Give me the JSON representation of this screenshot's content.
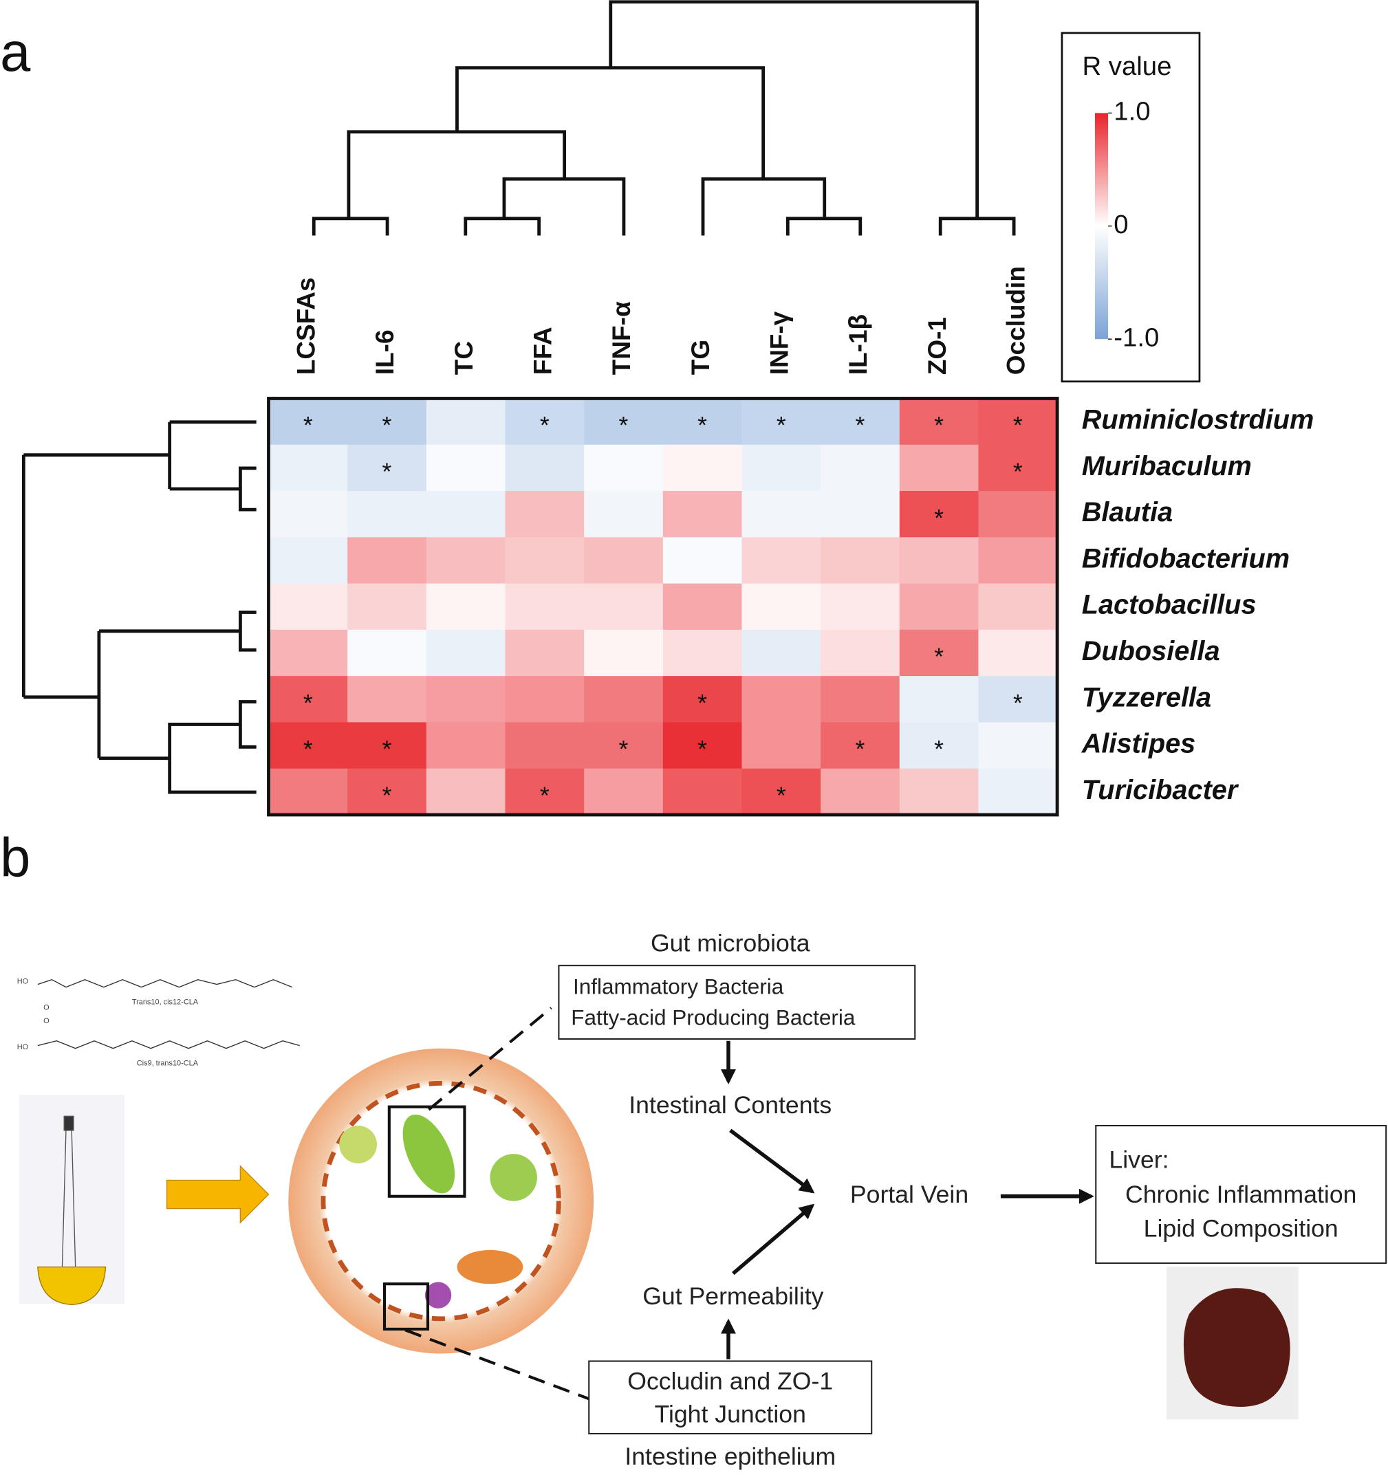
{
  "panel_labels": [
    "a",
    "b"
  ],
  "chart_data": {
    "type": "heatmap",
    "columns": [
      "LCSFAs",
      "IL-6",
      "TC",
      "FFA",
      "TNF-α",
      "TG",
      "INF-γ",
      "IL-1β",
      "ZO-1",
      "Occludin"
    ],
    "rows": [
      "Ruminiclostrdium",
      "Muribaculum",
      "Blautia",
      "Bifidobacterium",
      "Lactobacillus",
      "Dubosiella",
      "Tyzzerella",
      "Alistipes",
      "Turicibacter"
    ],
    "values": [
      [
        -0.5,
        -0.5,
        -0.2,
        -0.4,
        -0.5,
        -0.5,
        -0.45,
        -0.45,
        0.7,
        0.75
      ],
      [
        -0.15,
        -0.3,
        -0.05,
        -0.25,
        -0.05,
        0.05,
        -0.15,
        -0.1,
        0.4,
        0.75
      ],
      [
        -0.1,
        -0.15,
        -0.15,
        0.3,
        -0.1,
        0.35,
        -0.1,
        -0.1,
        0.8,
        0.6
      ],
      [
        -0.15,
        0.4,
        0.3,
        0.25,
        0.3,
        -0.05,
        0.2,
        0.25,
        0.3,
        0.45
      ],
      [
        0.1,
        0.2,
        0.05,
        0.15,
        0.15,
        0.4,
        0.05,
        0.1,
        0.4,
        0.25
      ],
      [
        0.35,
        -0.05,
        -0.15,
        0.3,
        0.05,
        0.15,
        -0.2,
        0.15,
        0.6,
        0.1
      ],
      [
        0.75,
        0.4,
        0.45,
        0.5,
        0.6,
        0.85,
        0.5,
        0.6,
        -0.15,
        -0.3
      ],
      [
        0.9,
        0.9,
        0.5,
        0.65,
        0.65,
        0.95,
        0.5,
        0.7,
        -0.2,
        -0.1
      ],
      [
        0.6,
        0.75,
        0.3,
        0.75,
        0.45,
        0.75,
        0.8,
        0.4,
        0.25,
        -0.15
      ]
    ],
    "significance": [
      [
        "*",
        "*",
        null,
        "*",
        "*",
        "*",
        "*",
        "*",
        "*",
        "*"
      ],
      [
        null,
        "*",
        null,
        null,
        null,
        null,
        null,
        null,
        null,
        "*"
      ],
      [
        null,
        null,
        null,
        null,
        null,
        null,
        null,
        null,
        "*",
        null
      ],
      [
        null,
        null,
        null,
        null,
        null,
        null,
        null,
        null,
        null,
        null
      ],
      [
        null,
        null,
        null,
        null,
        null,
        null,
        null,
        null,
        null,
        null
      ],
      [
        null,
        null,
        null,
        null,
        null,
        null,
        null,
        null,
        "*",
        null
      ],
      [
        "*",
        null,
        null,
        null,
        null,
        "*",
        null,
        null,
        null,
        "*"
      ],
      [
        "*",
        "*",
        null,
        null,
        "*",
        "*",
        null,
        "*",
        "*",
        null
      ],
      [
        null,
        "*",
        null,
        "*",
        null,
        null,
        "*",
        null,
        null,
        null
      ]
    ],
    "colorbar_title": "R value",
    "colorbar_lim": [
      -1,
      1
    ],
    "colorbar_ticks": [
      {
        "value": 1,
        "label": "1.0"
      },
      0,
      {
        "value": -1,
        "label": "-1.0"
      }
    ],
    "colors": {
      "low": "#7ba3d6",
      "mid": "#ffffff",
      "high": "#e8252b"
    }
  },
  "diagram": {
    "chem_labels": [
      "HO",
      "O",
      "Trans10, cis12-CLA",
      "HO",
      "O",
      "Cis9, trans10-CLA"
    ],
    "gut_microbiota": "Gut microbiota",
    "microbiota_box": [
      "Inflammatory Bacteria",
      "Fatty-acid Producing Bacteria"
    ],
    "intestinal_contents": "Intestinal Contents",
    "portal_vein": "Portal  Vein",
    "gut_permeability": "Gut Permeability",
    "epithelium_box": [
      "Occludin and ZO-1",
      "Tight Junction"
    ],
    "intestine_epithelium": "Intestine epithelium",
    "liver_box": [
      "Liver:",
      "Chronic Inflammation",
      "Lipid Composition"
    ]
  }
}
